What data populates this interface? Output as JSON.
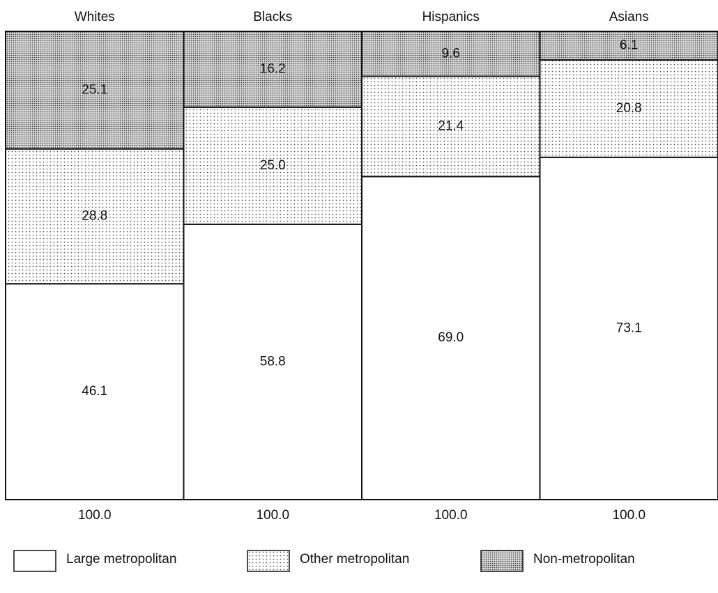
{
  "chart_data": {
    "type": "stacked-bar",
    "categories": [
      "Whites",
      "Blacks",
      "Hispanics",
      "Asians"
    ],
    "series": [
      {
        "name": "Large metropolitan",
        "color": "#ffffff",
        "values": [
          46.1,
          58.8,
          69.0,
          73.1
        ],
        "value_labels": [
          "46.1",
          "58.8",
          "69.0",
          "73.1"
        ]
      },
      {
        "name": "Other metropolitan",
        "color": "#eeeeee",
        "values": [
          28.8,
          25.0,
          21.4,
          20.8
        ],
        "value_labels": [
          "28.8",
          "25.0",
          "21.4",
          "20.8"
        ]
      },
      {
        "name": "Non-metropolitan",
        "color": "#cfcfcf",
        "values": [
          25.1,
          16.2,
          9.6,
          6.1
        ],
        "value_labels": [
          "25.1",
          "16.2",
          "9.6",
          "6.1"
        ]
      }
    ],
    "totals": {
      "values": [
        100,
        100,
        100,
        100
      ],
      "value_labels": [
        "100.0",
        "100.0",
        "100.0",
        "100.0"
      ]
    },
    "ylim": [
      0,
      100
    ]
  }
}
